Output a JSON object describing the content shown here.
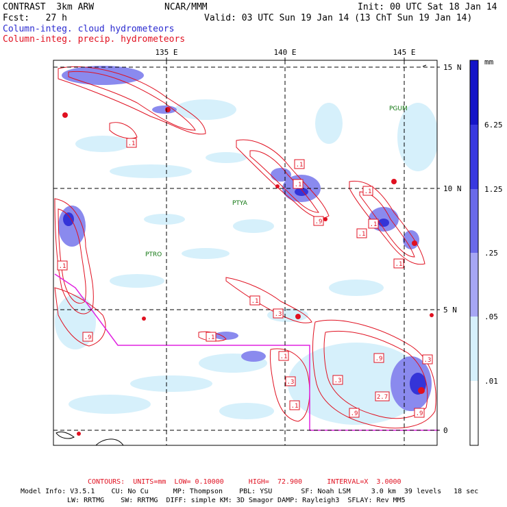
{
  "header": {
    "title": "CONTRAST  3km ARW",
    "center": "NCAR/MMM",
    "init": "Init: 00 UTC Sat 18 Jan 14",
    "fcst": "Fcst:   27 h",
    "valid": "Valid: 03 UTC Sun 19 Jan 14 (13 ChT Sun 19 Jan 14)",
    "legend_blue": "Column-integ. cloud hydrometeors",
    "legend_red": "Column-integ. precip. hydrometeors",
    "blue_color": "#2a2ad0",
    "red_color": "#e01020"
  },
  "map": {
    "lon_labels": [
      "135 E",
      "140 E",
      "145 E"
    ],
    "lat_labels": [
      "15 N",
      "10 N",
      "5 N",
      "0"
    ],
    "stations": [
      "PGUM",
      "PTYA",
      "PTRO"
    ],
    "contour_labels": [
      ".1",
      ".1",
      ".1",
      ".1",
      ".1",
      ".9",
      ".1",
      ".1",
      ".1",
      ".1",
      ".3",
      ".1",
      ".9",
      ".9",
      ".1",
      ".3",
      ".3",
      "2.7",
      ".1",
      ".9",
      ".9",
      ".3"
    ],
    "boundary_color": "#e020e0"
  },
  "colorbar": {
    "unit": "mm",
    "labels": [
      "6.25",
      "1.25",
      ".25",
      ".05",
      ".01"
    ],
    "colors": [
      "#1414c8",
      "#3838e0",
      "#6a6aea",
      "#a6a6f4",
      "#d6f0fb",
      "#ffffff"
    ]
  },
  "footer": {
    "contours": "CONTOURS:  UNITS=mm  LOW= 0.10000      HIGH=  72.900      INTERVAL=X  3.0000",
    "model_line1": "Model Info: V3.5.1    CU: No Cu      MP: Thompson    PBL: YSU       SF: Noah LSM     3.0 km  39 levels   18 sec",
    "model_line2": "LW: RRTMG    SW: RRTMG  DIFF: simple KM: 3D Smagor DAMP: Rayleigh3  SFLAY: Rev MM5"
  }
}
